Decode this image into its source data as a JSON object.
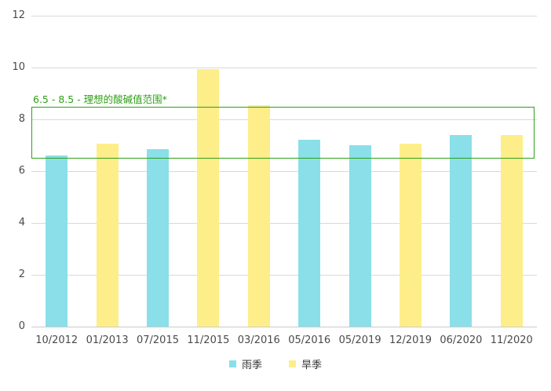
{
  "chart_data": {
    "type": "bar",
    "title": "",
    "xlabel": "",
    "ylabel": "",
    "categories": [
      "10/2012",
      "01/2013",
      "07/2015",
      "11/2015",
      "03/2016",
      "05/2016",
      "05/2019",
      "12/2019",
      "06/2020",
      "11/2020"
    ],
    "series": [
      {
        "name": "雨季",
        "color": "#8ADFE9",
        "values": [
          6.6,
          null,
          6.85,
          null,
          null,
          7.2,
          7.0,
          null,
          7.4,
          null
        ]
      },
      {
        "name": "旱季",
        "color": "#FDEE8A",
        "values": [
          null,
          7.05,
          null,
          9.95,
          8.55,
          null,
          null,
          7.05,
          null,
          7.4
        ]
      }
    ],
    "ylim": [
      0,
      12
    ],
    "yticks": [
      0,
      2,
      4,
      6,
      8,
      10,
      12
    ],
    "grid": true,
    "legend_position": "bottom",
    "annotation": {
      "label": "6.5 - 8.5 - 理想的酸碱值范围*",
      "y_min": 6.5,
      "y_max": 8.5,
      "color": "#2FA018"
    }
  },
  "colors": {
    "rainy_season": "#8ADFE9",
    "dry_season": "#FDEE8A",
    "annotation_green": "#2FA018",
    "gridline": "#d9d9d9",
    "axis_text": "#4a4a4a"
  }
}
